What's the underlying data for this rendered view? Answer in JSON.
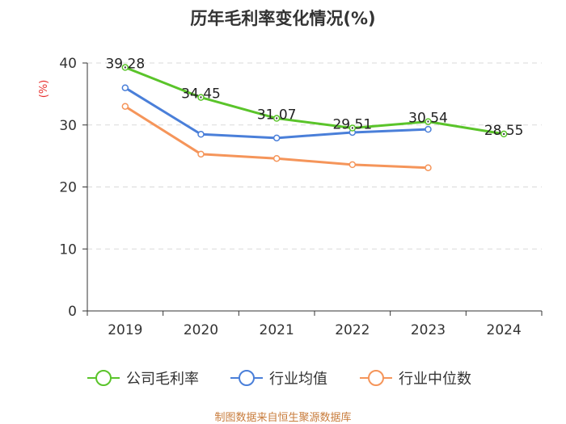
{
  "chart_data": {
    "type": "line",
    "title": "历年毛利率变化情况(%)",
    "ylabel": "(%)",
    "xlabel": "",
    "ylim": [
      0,
      40
    ],
    "yticks": [
      0,
      10,
      20,
      30,
      40
    ],
    "categories": [
      "2019",
      "2020",
      "2021",
      "2022",
      "2023",
      "2024"
    ],
    "grid": true,
    "legend_position": "bottom",
    "series": [
      {
        "name": "公司毛利率",
        "color": "#5ac42a",
        "values": [
          39.28,
          34.45,
          31.07,
          29.51,
          30.54,
          28.55
        ],
        "labels": [
          "39.28",
          "34.45",
          "31.07",
          "29.51",
          "30.54",
          "28.55"
        ]
      },
      {
        "name": "行业均值",
        "color": "#4a7fd9",
        "values": [
          36.0,
          28.5,
          27.9,
          28.8,
          29.3,
          null
        ]
      },
      {
        "name": "行业中位数",
        "color": "#f5955a",
        "values": [
          33.0,
          25.3,
          24.6,
          23.6,
          23.1,
          null
        ]
      }
    ]
  },
  "footer": {
    "source": "制图数据来自恒生聚源数据库"
  }
}
